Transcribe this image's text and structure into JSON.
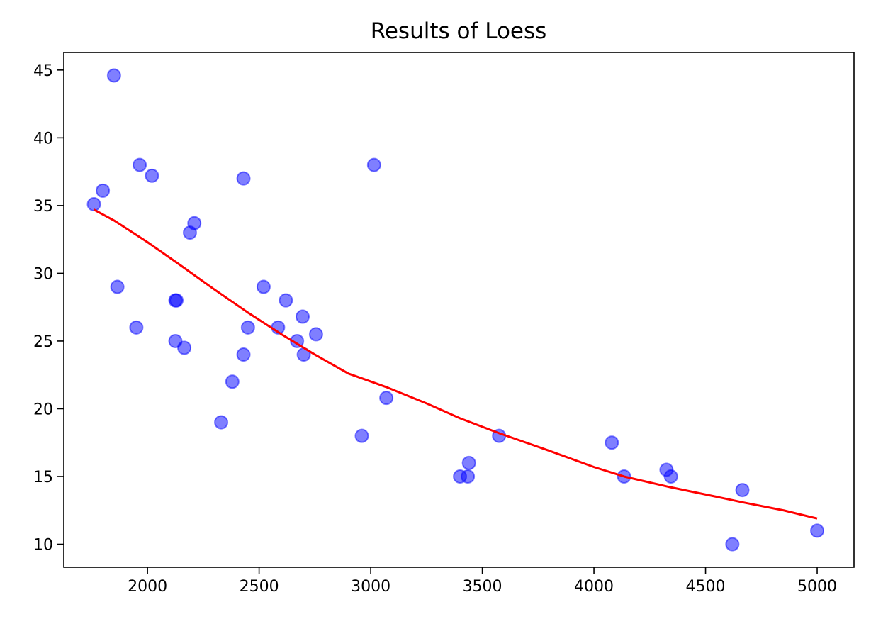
{
  "chart_data": {
    "type": "scatter",
    "title": "Results of Loess",
    "xlabel": "",
    "ylabel": "",
    "xlim": [
      1625,
      5165
    ],
    "ylim": [
      8.3,
      46.3
    ],
    "xticks": [
      2000,
      2500,
      3000,
      3500,
      4000,
      4500,
      5000
    ],
    "yticks": [
      10,
      15,
      20,
      25,
      30,
      35,
      40,
      45
    ],
    "grid": false,
    "legend": "none",
    "series": [
      {
        "kind": "scatter",
        "color": "#0000ff",
        "opacity": 0.5,
        "points": [
          {
            "x": 1850,
            "y": 44.6
          },
          {
            "x": 1760,
            "y": 35.1
          },
          {
            "x": 1800,
            "y": 36.1
          },
          {
            "x": 1965,
            "y": 38.0
          },
          {
            "x": 2020,
            "y": 37.2
          },
          {
            "x": 1865,
            "y": 29.0
          },
          {
            "x": 1950,
            "y": 26.0
          },
          {
            "x": 2125,
            "y": 28.0
          },
          {
            "x": 2130,
            "y": 28.0
          },
          {
            "x": 2125,
            "y": 25.0
          },
          {
            "x": 2165,
            "y": 24.5
          },
          {
            "x": 2190,
            "y": 33.0
          },
          {
            "x": 2210,
            "y": 33.7
          },
          {
            "x": 2330,
            "y": 19.0
          },
          {
            "x": 2380,
            "y": 22.0
          },
          {
            "x": 2430,
            "y": 24.0
          },
          {
            "x": 2430,
            "y": 37.0
          },
          {
            "x": 2450,
            "y": 26.0
          },
          {
            "x": 2520,
            "y": 29.0
          },
          {
            "x": 2585,
            "y": 26.0
          },
          {
            "x": 2620,
            "y": 28.0
          },
          {
            "x": 2670,
            "y": 25.0
          },
          {
            "x": 2695,
            "y": 26.8
          },
          {
            "x": 2700,
            "y": 24.0
          },
          {
            "x": 2755,
            "y": 25.5
          },
          {
            "x": 2960,
            "y": 18.0
          },
          {
            "x": 3015,
            "y": 38.0
          },
          {
            "x": 3070,
            "y": 20.8
          },
          {
            "x": 3400,
            "y": 15.0
          },
          {
            "x": 3435,
            "y": 15.0
          },
          {
            "x": 3440,
            "y": 16.0
          },
          {
            "x": 3575,
            "y": 18.0
          },
          {
            "x": 4080,
            "y": 17.5
          },
          {
            "x": 4135,
            "y": 15.0
          },
          {
            "x": 4325,
            "y": 15.5
          },
          {
            "x": 4345,
            "y": 15.0
          },
          {
            "x": 4620,
            "y": 10.0
          },
          {
            "x": 4665,
            "y": 14.0
          },
          {
            "x": 5000,
            "y": 11.0
          }
        ]
      },
      {
        "kind": "line",
        "color": "#ff0000",
        "points": [
          {
            "x": 1760,
            "y": 34.7
          },
          {
            "x": 1850,
            "y": 33.9
          },
          {
            "x": 2000,
            "y": 32.3
          },
          {
            "x": 2130,
            "y": 30.8
          },
          {
            "x": 2300,
            "y": 28.8
          },
          {
            "x": 2450,
            "y": 27.1
          },
          {
            "x": 2600,
            "y": 25.5
          },
          {
            "x": 2750,
            "y": 24.0
          },
          {
            "x": 2900,
            "y": 22.6
          },
          {
            "x": 3070,
            "y": 21.6
          },
          {
            "x": 3250,
            "y": 20.4
          },
          {
            "x": 3400,
            "y": 19.3
          },
          {
            "x": 3575,
            "y": 18.2
          },
          {
            "x": 3800,
            "y": 16.9
          },
          {
            "x": 4000,
            "y": 15.7
          },
          {
            "x": 4135,
            "y": 15.0
          },
          {
            "x": 4345,
            "y": 14.2
          },
          {
            "x": 4550,
            "y": 13.5
          },
          {
            "x": 4665,
            "y": 13.1
          },
          {
            "x": 4850,
            "y": 12.5
          },
          {
            "x": 5000,
            "y": 11.9
          }
        ]
      }
    ]
  }
}
